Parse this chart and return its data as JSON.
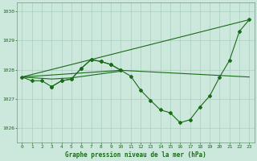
{
  "background_color": "#cce8dc",
  "grid_color": "#aacfbe",
  "line_color": "#1a6b1a",
  "title": "Graphe pression niveau de la mer (hPa)",
  "xlim": [
    -0.5,
    23.5
  ],
  "ylim": [
    1025.5,
    1030.3
  ],
  "yticks": [
    1026,
    1027,
    1028,
    1029,
    1030
  ],
  "xticks": [
    0,
    1,
    2,
    3,
    4,
    5,
    6,
    7,
    8,
    9,
    10,
    11,
    12,
    13,
    14,
    15,
    16,
    17,
    18,
    19,
    20,
    21,
    22,
    23
  ],
  "series0_x": [
    0,
    1,
    2,
    3,
    4,
    5,
    6,
    7,
    8,
    9,
    10,
    11,
    12,
    13,
    14,
    15,
    16,
    17,
    18,
    19,
    20,
    21,
    22,
    23
  ],
  "series0_y": [
    1027.75,
    1027.62,
    1027.62,
    1027.42,
    1027.62,
    1027.68,
    1028.05,
    1028.35,
    1028.28,
    1028.18,
    1027.98,
    1027.78,
    1027.3,
    1026.95,
    1026.62,
    1026.52,
    1026.18,
    1026.28,
    1026.72,
    1027.1,
    1027.75,
    1028.32,
    1029.32,
    1029.72
  ],
  "series1_x": [
    0,
    3,
    5,
    10
  ],
  "series1_y": [
    1027.75,
    1027.68,
    1027.72,
    1027.95
  ],
  "series2_x": [
    0,
    23
  ],
  "series2_y": [
    1027.75,
    1029.72
  ],
  "series3_x": [
    0,
    10,
    23
  ],
  "series3_y": [
    1027.75,
    1027.98,
    1027.75
  ],
  "series4_x": [
    3,
    4,
    5,
    6,
    7,
    8,
    9,
    10
  ],
  "series4_y": [
    1027.42,
    1027.62,
    1027.68,
    1028.05,
    1028.35,
    1028.28,
    1028.18,
    1027.98
  ]
}
